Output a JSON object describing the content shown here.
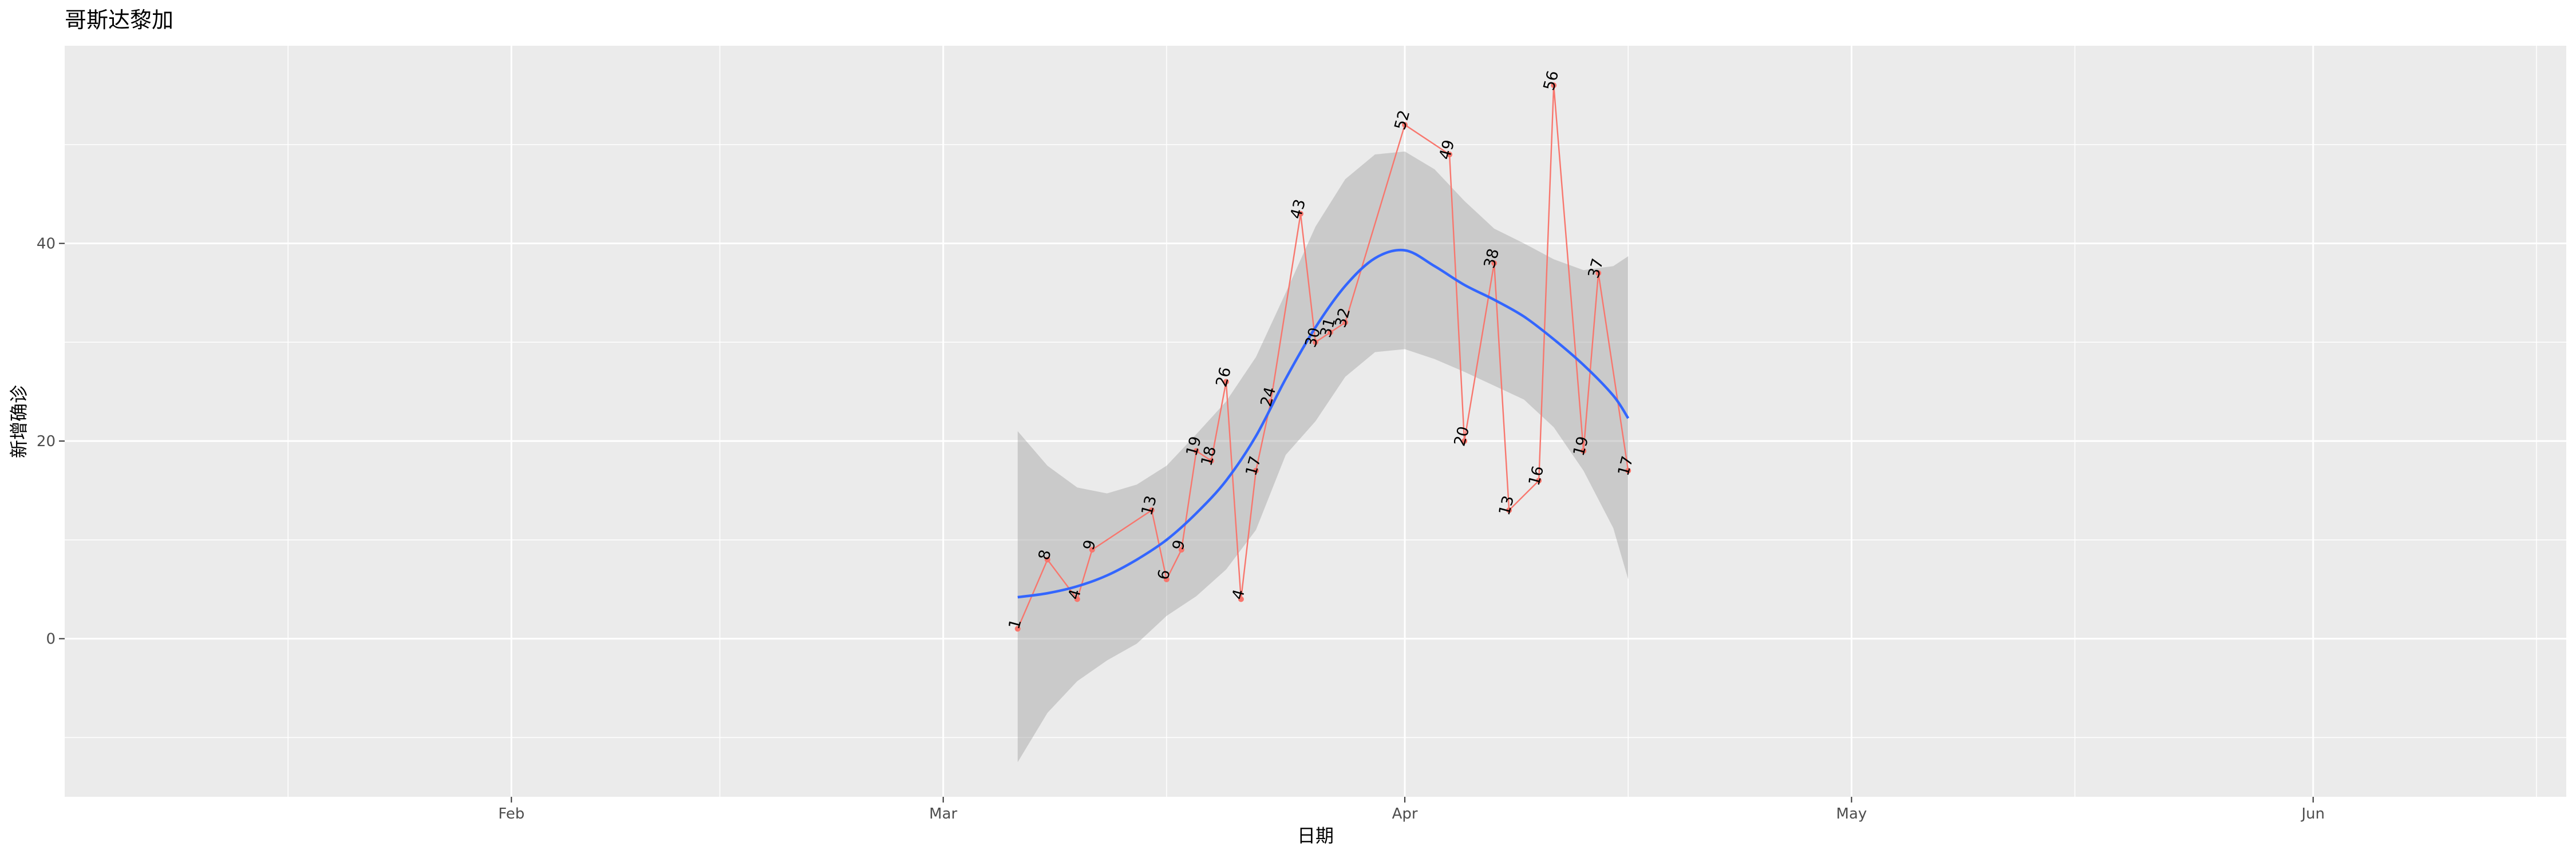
{
  "chart_data": {
    "type": "line",
    "title": "哥斯达黎加",
    "xlabel": "日期",
    "ylabel": "新增确诊",
    "x_range": [
      "2020-01-02",
      "2020-06-18"
    ],
    "ylim": [
      -16,
      60
    ],
    "x_ticks": [
      {
        "date": "2020-02-01",
        "label": "Feb"
      },
      {
        "date": "2020-03-01",
        "label": "Mar"
      },
      {
        "date": "2020-04-01",
        "label": "Apr"
      },
      {
        "date": "2020-05-01",
        "label": "May"
      },
      {
        "date": "2020-06-01",
        "label": "Jun"
      }
    ],
    "x_minor_ticks": [
      "2020-01-17",
      "2020-02-15",
      "2020-03-16",
      "2020-04-16",
      "2020-05-16",
      "2020-06-16"
    ],
    "y_ticks": [
      0,
      20,
      40
    ],
    "y_minor_ticks": [
      -10,
      10,
      30,
      50
    ],
    "grid": true,
    "series": [
      {
        "color": "#f8766d",
        "points": [
          {
            "x": "2020-03-06",
            "y": 1
          },
          {
            "x": "2020-03-08",
            "y": 8
          },
          {
            "x": "2020-03-10",
            "y": 4
          },
          {
            "x": "2020-03-11",
            "y": 9
          },
          {
            "x": "2020-03-15",
            "y": 13
          },
          {
            "x": "2020-03-16",
            "y": 6
          },
          {
            "x": "2020-03-17",
            "y": 9
          },
          {
            "x": "2020-03-18",
            "y": 19
          },
          {
            "x": "2020-03-19",
            "y": 18
          },
          {
            "x": "2020-03-20",
            "y": 26
          },
          {
            "x": "2020-03-21",
            "y": 4
          },
          {
            "x": "2020-03-22",
            "y": 17
          },
          {
            "x": "2020-03-23",
            "y": 24
          },
          {
            "x": "2020-03-25",
            "y": 43
          },
          {
            "x": "2020-03-26",
            "y": 30
          },
          {
            "x": "2020-03-27",
            "y": 31
          },
          {
            "x": "2020-03-28",
            "y": 32
          },
          {
            "x": "2020-04-01",
            "y": 52
          },
          {
            "x": "2020-04-04",
            "y": 49
          },
          {
            "x": "2020-04-05",
            "y": 20
          },
          {
            "x": "2020-04-07",
            "y": 38
          },
          {
            "x": "2020-04-08",
            "y": 13
          },
          {
            "x": "2020-04-10",
            "y": 16
          },
          {
            "x": "2020-04-11",
            "y": 56
          },
          {
            "x": "2020-04-13",
            "y": 19
          },
          {
            "x": "2020-04-14",
            "y": 37
          },
          {
            "x": "2020-04-16",
            "y": 17
          }
        ]
      }
    ],
    "smooth": {
      "color": "#3366ff",
      "band_color": "#999999",
      "points": [
        {
          "x": "2020-03-06",
          "y": 4.2,
          "lo": -12.5,
          "hi": 21.0
        },
        {
          "x": "2020-03-08",
          "y": 4.6,
          "lo": -7.5,
          "hi": 17.5
        },
        {
          "x": "2020-03-10",
          "y": 5.3,
          "lo": -4.3,
          "hi": 15.3
        },
        {
          "x": "2020-03-12",
          "y": 6.4,
          "lo": -2.2,
          "hi": 14.7
        },
        {
          "x": "2020-03-14",
          "y": 8.0,
          "lo": -0.5,
          "hi": 15.6
        },
        {
          "x": "2020-03-16",
          "y": 10.0,
          "lo": 2.3,
          "hi": 17.5
        },
        {
          "x": "2020-03-18",
          "y": 12.7,
          "lo": 4.3,
          "hi": 20.7
        },
        {
          "x": "2020-03-20",
          "y": 16.0,
          "lo": 7.0,
          "hi": 24.0
        },
        {
          "x": "2020-03-22",
          "y": 20.5,
          "lo": 11.0,
          "hi": 28.5
        },
        {
          "x": "2020-03-24",
          "y": 26.3,
          "lo": 18.6,
          "hi": 35.0
        },
        {
          "x": "2020-03-26",
          "y": 31.5,
          "lo": 22.0,
          "hi": 41.7
        },
        {
          "x": "2020-03-28",
          "y": 35.7,
          "lo": 26.5,
          "hi": 46.5
        },
        {
          "x": "2020-03-30",
          "y": 38.5,
          "lo": 29.0,
          "hi": 49.0
        },
        {
          "x": "2020-04-01",
          "y": 39.3,
          "lo": 29.3,
          "hi": 49.3
        },
        {
          "x": "2020-04-03",
          "y": 37.7,
          "lo": 28.3,
          "hi": 47.5
        },
        {
          "x": "2020-04-05",
          "y": 35.8,
          "lo": 27.0,
          "hi": 44.3
        },
        {
          "x": "2020-04-07",
          "y": 34.3,
          "lo": 25.6,
          "hi": 41.5
        },
        {
          "x": "2020-04-09",
          "y": 32.6,
          "lo": 24.2,
          "hi": 40.0
        },
        {
          "x": "2020-04-11",
          "y": 30.3,
          "lo": 21.4,
          "hi": 38.4
        },
        {
          "x": "2020-04-13",
          "y": 27.7,
          "lo": 17.0,
          "hi": 37.3
        },
        {
          "x": "2020-04-15",
          "y": 24.6,
          "lo": 11.2,
          "hi": 37.7
        },
        {
          "x": "2020-04-16",
          "y": 22.3,
          "lo": 6.0,
          "hi": 38.7
        }
      ]
    }
  }
}
